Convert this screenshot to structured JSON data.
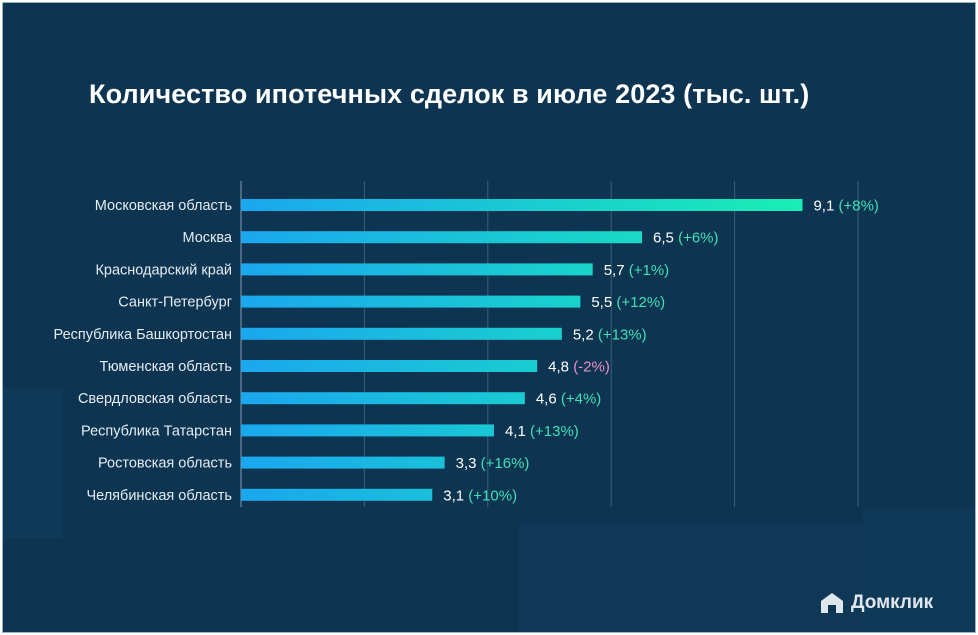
{
  "chart_data": {
    "type": "bar",
    "orientation": "horizontal",
    "title": "Количество ипотечных сделок в июле 2023 (тыс. шт.)",
    "categories": [
      "Московская область",
      "Москва",
      "Краснодарский край",
      "Санкт-Петербург",
      "Республика Башкортостан",
      "Тюменская область",
      "Свердловская область",
      "Республика Татарстан",
      "Ростовская область",
      "Челябинская область"
    ],
    "values": [
      9.1,
      6.5,
      5.7,
      5.5,
      5.2,
      4.8,
      4.6,
      4.1,
      3.3,
      3.1
    ],
    "value_labels": [
      "9,1",
      "6,5",
      "5,7",
      "5,5",
      "5,2",
      "4,8",
      "4,6",
      "4,1",
      "3,3",
      "3,1"
    ],
    "change_labels": [
      "(+8%)",
      "(+6%)",
      "(+1%)",
      "(+12%)",
      "(+13%)",
      "(-2%)",
      "(+4%)",
      "(+13%)",
      "(+16%)",
      "(+10%)"
    ],
    "xlim": [
      0,
      10
    ],
    "grid": true,
    "colors": {
      "bar_start": "#1aa7ef",
      "bar_end": "#18efb4",
      "positive_change": "#3fe0b6",
      "negative_change": "#e98fc7",
      "value_text": "#ffffff",
      "category_text": "#e4ebf1",
      "gridline": "#3c5f78"
    }
  },
  "brand": {
    "logo_text": "Домклик",
    "logo_icon": "house-icon"
  }
}
